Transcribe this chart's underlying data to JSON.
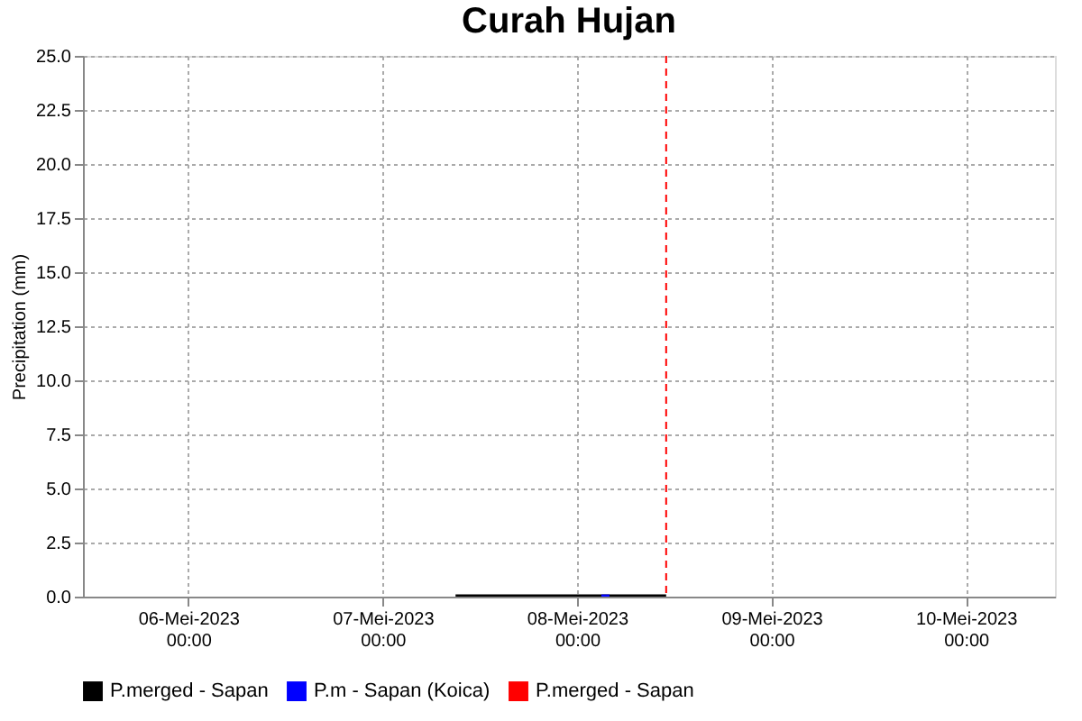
{
  "chart_data": {
    "type": "bar",
    "title": "Curah Hujan",
    "ylabel": "Precipitation (mm)",
    "series": [
      {
        "name": "P.merged - Sapan",
        "color": "#000000",
        "type": "area",
        "x": [
          "2023-05-07T09:00",
          "2023-05-08T11:00"
        ],
        "values": [
          0.1,
          0.1
        ]
      },
      {
        "name": "P.m - Sapan (Koica)",
        "color": "#0000ff",
        "x": [
          "2023-05-08T03:00"
        ],
        "values": [
          0.1
        ]
      }
    ],
    "ref_lines": [
      {
        "axis": "x",
        "value": "2023-05-08T11:00",
        "label": "P.merged - Sapan",
        "color": "#ff0000",
        "line_style": "dashed"
      }
    ],
    "xlim": [
      "2023-05-05T11:00",
      "2023-05-10T11:00"
    ],
    "xticks": [
      {
        "value": "2023-05-06T00:00",
        "label": "06-Mei-2023\n00:00"
      },
      {
        "value": "2023-05-07T00:00",
        "label": "07-Mei-2023\n00:00"
      },
      {
        "value": "2023-05-08T00:00",
        "label": "08-Mei-2023\n00:00"
      },
      {
        "value": "2023-05-09T00:00",
        "label": "09-Mei-2023\n00:00"
      },
      {
        "value": "2023-05-10T00:00",
        "label": "10-Mei-2023\n00:00"
      }
    ],
    "ylim": [
      0,
      25
    ],
    "yticks": [
      {
        "value": 0,
        "label": "0.0"
      },
      {
        "value": 2.5,
        "label": "2.5"
      },
      {
        "value": 5,
        "label": "5.0"
      },
      {
        "value": 7.5,
        "label": "7.5"
      },
      {
        "value": 10,
        "label": "10.0"
      },
      {
        "value": 12.5,
        "label": "12.5"
      },
      {
        "value": 15,
        "label": "15.0"
      },
      {
        "value": 17.5,
        "label": "17.5"
      },
      {
        "value": 20,
        "label": "20.0"
      },
      {
        "value": 22.5,
        "label": "22.5"
      },
      {
        "value": 25,
        "label": "25.0"
      }
    ],
    "grid": true,
    "legend": "bottom"
  }
}
